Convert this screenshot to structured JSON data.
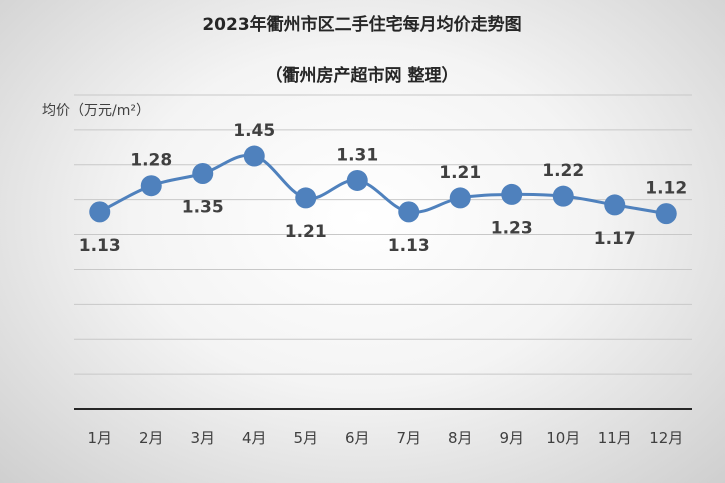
{
  "chart_data": {
    "type": "line",
    "title": "2023年衢州市区二手住宅每月均价走势图",
    "subtitle": "（衢州房产超市网 整理）",
    "ylabel": "均价（万元/m²）",
    "xlabel": "",
    "categories": [
      "1月",
      "2月",
      "3月",
      "4月",
      "5月",
      "6月",
      "7月",
      "8月",
      "9月",
      "10月",
      "11月",
      "12月"
    ],
    "series": [
      {
        "name": "均价",
        "values": [
          1.13,
          1.28,
          1.35,
          1.45,
          1.21,
          1.31,
          1.13,
          1.21,
          1.23,
          1.22,
          1.17,
          1.12
        ],
        "color": "#4f81bd"
      }
    ],
    "label_position": [
      "below",
      "above",
      "below",
      "above",
      "below",
      "above",
      "below",
      "above",
      "below",
      "above",
      "below",
      "above"
    ],
    "ylim": [
      0,
      1.8
    ],
    "grid": true,
    "legend": "none"
  }
}
